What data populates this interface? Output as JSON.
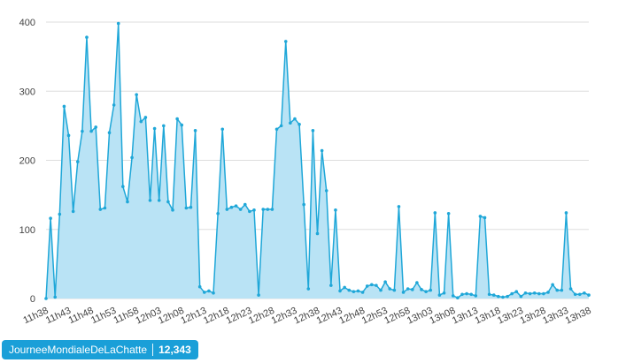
{
  "chart_data": {
    "type": "area",
    "ylim": [
      0,
      400
    ],
    "y_ticks": [
      0,
      100,
      200,
      300,
      400
    ],
    "x_tick_labels": [
      "11h38",
      "11h43",
      "11h48",
      "11h53",
      "11h58",
      "12h03",
      "12h08",
      "12h13",
      "12h18",
      "12h23",
      "12h28",
      "12h33",
      "12h38",
      "12h43",
      "12h48",
      "12h53",
      "12h58",
      "13h03",
      "13h08",
      "13h13",
      "13h18",
      "13h23",
      "13h28",
      "13h33",
      "13h38"
    ],
    "minutes_per_tick": 5,
    "grid": true,
    "color": "#1fa7d8",
    "fill_color": "#b9e3f5",
    "series": [
      {
        "values": [
          0,
          116,
          2,
          122,
          278,
          236,
          126,
          198,
          242,
          378,
          242,
          248,
          129,
          131,
          240,
          280,
          398,
          162,
          140,
          204,
          295,
          256,
          262,
          142,
          246,
          142,
          250,
          140,
          128,
          260,
          251,
          131,
          132,
          243,
          17,
          9,
          11,
          8,
          123,
          245,
          129,
          132,
          134,
          129,
          136,
          126,
          128,
          5,
          129,
          129,
          129,
          245,
          250,
          372,
          254,
          260,
          252,
          136,
          14,
          243,
          94,
          214,
          156,
          19,
          128,
          11,
          16,
          12,
          10,
          11,
          9,
          18,
          20,
          19,
          12,
          24,
          14,
          12,
          133,
          9,
          14,
          13,
          23,
          13,
          10,
          12,
          124,
          5,
          8,
          123,
          4,
          1,
          6,
          7,
          6,
          4,
          119,
          117,
          6,
          5,
          3,
          2,
          3,
          7,
          10,
          3,
          8,
          7,
          8,
          7,
          7,
          9,
          20,
          12,
          12,
          124,
          14,
          6,
          6,
          8,
          5
        ]
      }
    ]
  },
  "badge": {
    "hashtag": "JourneeMondialeDeLaChatte",
    "count": "12,343"
  }
}
